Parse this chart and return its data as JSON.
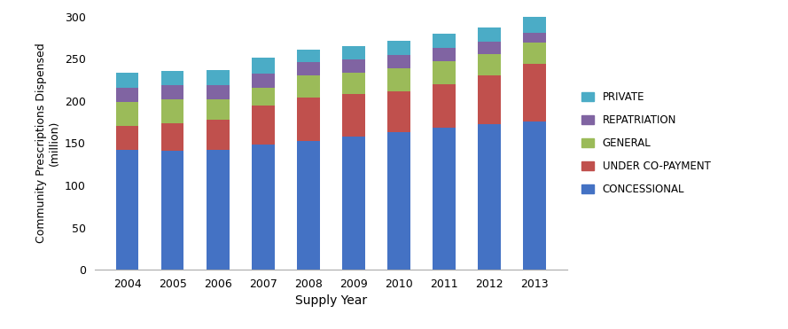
{
  "years": [
    "2004",
    "2005",
    "2006",
    "2007",
    "2008",
    "2009",
    "2010",
    "2011",
    "2012",
    "2013"
  ],
  "concessional": [
    142,
    141,
    142,
    148,
    152,
    158,
    163,
    168,
    172,
    176
  ],
  "under_copayment": [
    28,
    33,
    36,
    46,
    52,
    50,
    48,
    52,
    58,
    68
  ],
  "general": [
    29,
    28,
    24,
    22,
    26,
    25,
    28,
    27,
    25,
    25
  ],
  "repatriation": [
    16,
    17,
    17,
    16,
    16,
    16,
    15,
    16,
    15,
    12
  ],
  "private": [
    18,
    16,
    18,
    19,
    15,
    16,
    17,
    17,
    17,
    20
  ],
  "colors": {
    "concessional": "#4472C4",
    "under_copayment": "#C0504D",
    "general": "#9BBB59",
    "repatriation": "#8064A2",
    "private": "#4BACC6"
  },
  "legend_labels": [
    "PRIVATE",
    "REPATRIATION",
    "GENERAL",
    "UNDER CO-PAYMENT",
    "CONCESSIONAL"
  ],
  "ylabel": "Community Prescriptions Dispensed\n(million)",
  "xlabel": "Supply Year",
  "ylim": [
    0,
    300
  ],
  "yticks": [
    0,
    50,
    100,
    150,
    200,
    250,
    300
  ],
  "bar_width": 0.5,
  "figsize": [
    8.89,
    3.71
  ],
  "dpi": 100
}
